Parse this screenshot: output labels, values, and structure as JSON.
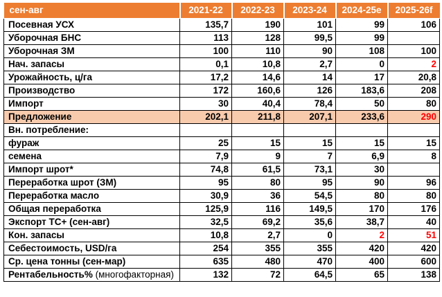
{
  "table": {
    "period_header": "сен-авг",
    "header": {
      "label": "сен-авг",
      "columns": [
        "2021-22",
        "2022-23",
        "2023-24",
        "2024-25e",
        "2025-26f"
      ]
    },
    "rows": [
      {
        "label": "Посевная УСХ",
        "values": [
          "135,7",
          "190",
          "101",
          "99",
          "106"
        ]
      },
      {
        "label": "Уборочная БНС",
        "values": [
          "113",
          "128",
          "99,5",
          "99",
          ""
        ]
      },
      {
        "label": "Уборочная ЗМ",
        "values": [
          "100",
          "110",
          "90",
          "108",
          "100"
        ]
      },
      {
        "label": "Нач. запасы",
        "values": [
          "0,1",
          "10,8",
          "2,7",
          "0",
          "2"
        ],
        "red": [
          4
        ]
      },
      {
        "label": "Урожайность, ц/га",
        "values": [
          "17,2",
          "14,6",
          "14",
          "17",
          "20,8"
        ]
      },
      {
        "label": "Производство",
        "values": [
          "172",
          "160,6",
          "126",
          "183,6",
          "208"
        ]
      },
      {
        "label": "Импорт",
        "values": [
          "30",
          "40,4",
          "78,4",
          "50",
          "80"
        ]
      },
      {
        "label": "Предложение",
        "values": [
          "202,1",
          "211,8",
          "207,1",
          "233,6",
          "290"
        ],
        "red": [
          4
        ],
        "highlight": true
      },
      {
        "label": "Вн. потребление:",
        "values": [
          "",
          "",
          "",
          "",
          ""
        ]
      },
      {
        "label": "фураж",
        "values": [
          "25",
          "15",
          "15",
          "15",
          "15"
        ]
      },
      {
        "label": "семена",
        "values": [
          "7,9",
          "9",
          "7",
          "6,9",
          "8"
        ]
      },
      {
        "label": "Импорт шрот*",
        "values": [
          "74,8",
          "61,5",
          "73,1",
          "30",
          ""
        ]
      },
      {
        "label": "Переработка шрот (ЗМ)",
        "values": [
          "95",
          "80",
          "95",
          "90",
          "96"
        ]
      },
      {
        "label": "Переработка масло",
        "values": [
          "30,9",
          "36",
          "54,5",
          "80",
          "80"
        ]
      },
      {
        "label": "Общая переработка",
        "values": [
          "125,9",
          "116",
          "149,5",
          "170",
          "176"
        ]
      },
      {
        "label": "Экспорт ТС+ (сен-авг)",
        "values": [
          "32,5",
          "69,2",
          "35,6",
          "38,7",
          "40"
        ]
      },
      {
        "label": "Кон. запасы",
        "values": [
          "10,8",
          "2,7",
          "0",
          "2",
          "51"
        ],
        "red": [
          3,
          4
        ]
      },
      {
        "label": "Себестоимость, USD/га",
        "values": [
          "254",
          "355",
          "355",
          "420",
          "420"
        ]
      },
      {
        "label": "Ср. цена тонны (сен-мар)",
        "values": [
          "635",
          "480",
          "470",
          "400",
          "600"
        ]
      },
      {
        "label": "Рентабельность%",
        "note": "(многофакторная)",
        "values": [
          "132",
          "72",
          "64,5",
          "65",
          "138"
        ]
      }
    ],
    "colors": {
      "header_bg": "#ED7D31",
      "header_text": "#FFFFFF",
      "highlight_bg": "#F8CBAD",
      "alert_text": "#FF0000",
      "border": "#000000"
    }
  }
}
